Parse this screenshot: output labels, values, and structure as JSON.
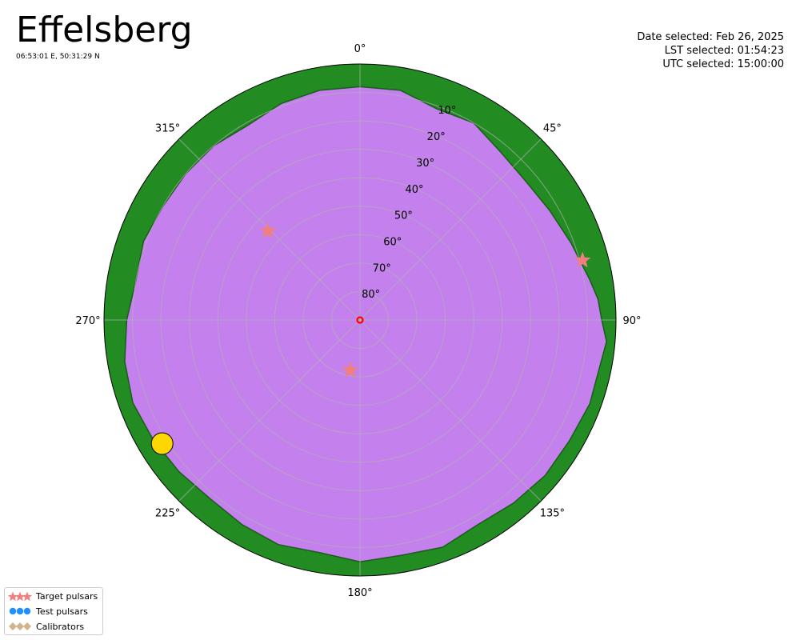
{
  "header": {
    "title": "Effelsberg",
    "coordinates": "06:53:01 E, 50:31:29 N"
  },
  "info": {
    "date": "Date selected: Feb 26, 2025",
    "lst": "LST selected: 01:54:23",
    "utc": "UTC selected: 15:00:00"
  },
  "colors": {
    "horizon_fill": "#228b22",
    "visible_fill": "#c481ee",
    "horizon_edge": "#1a5c1a",
    "target": "#f08080",
    "test": "#1e90ff",
    "calibrator": "#d2b48c",
    "sun": "#ffd700",
    "zenith": "#ff0000",
    "grid": "#b0b0b0"
  },
  "chart_data": {
    "type": "scatter",
    "projection": "polar",
    "theta_direction": "clockwise",
    "theta_zero": "N",
    "r_axis": "altitude",
    "rlim": [
      90,
      0
    ],
    "grid": true,
    "theta_ticks": [
      0,
      45,
      90,
      135,
      180,
      225,
      270,
      315
    ],
    "theta_tick_labels": [
      "0°",
      "45°",
      "90°",
      "135°",
      "180°",
      "225°",
      "270°",
      "315°"
    ],
    "r_ticks": [
      10,
      20,
      30,
      40,
      50,
      60,
      70,
      80
    ],
    "r_tick_labels": [
      "10°",
      "20°",
      "30°",
      "40°",
      "50°",
      "60°",
      "70°",
      "80°"
    ],
    "r_label_position_deg": 22.5,
    "horizon_profile": {
      "azimuth": [
        0,
        10,
        20,
        30,
        40,
        50,
        60,
        70,
        80,
        85,
        90,
        95,
        100,
        110,
        120,
        130,
        140,
        150,
        160,
        170,
        180,
        190,
        200,
        210,
        220,
        230,
        240,
        250,
        260,
        270,
        280,
        290,
        300,
        310,
        320,
        330,
        340,
        350,
        360
      ],
      "altitude": [
        8,
        8,
        11,
        10,
        13,
        14,
        13,
        11,
        8,
        6,
        5,
        3,
        4,
        4,
        5,
        5,
        6,
        7,
        5,
        6,
        5,
        7,
        6,
        7,
        8,
        7,
        6,
        5,
        6,
        8,
        10,
        9,
        10,
        10,
        10,
        11,
        9,
        8,
        8
      ]
    },
    "series": [
      {
        "name": "Target pulsars",
        "marker": "star",
        "points": [
          {
            "az": 314,
            "alt": 45
          },
          {
            "az": 75,
            "alt": 9
          },
          {
            "az": 191,
            "alt": 72
          }
        ]
      },
      {
        "name": "Test pulsars",
        "marker": "circle",
        "points": []
      },
      {
        "name": "Calibrators",
        "marker": "diamond",
        "points": []
      }
    ],
    "sun": {
      "az": 238,
      "alt": 8
    },
    "zenith_marker": {
      "az": 0,
      "alt": 90
    }
  },
  "legend": {
    "items": [
      "Target pulsars",
      "Test pulsars",
      "Calibrators"
    ]
  }
}
